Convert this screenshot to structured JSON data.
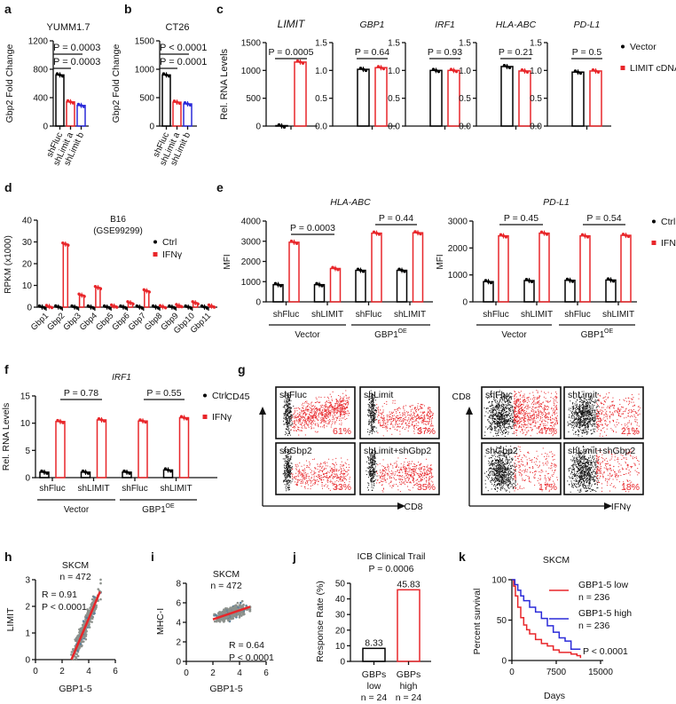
{
  "panels": [
    "a",
    "b",
    "c",
    "d",
    "e",
    "f",
    "g",
    "h",
    "i",
    "j",
    "k"
  ],
  "colors": {
    "ctrl": "#000000",
    "treated": "#e8262a",
    "blue": "#2b2bd9",
    "scatter": "#8c918c"
  },
  "chart_data": [
    {
      "panel": "a",
      "type": "bar",
      "title": "YUMM1.7",
      "ylabel": "Gbp2 Fold Change",
      "ylim": [
        0,
        1200
      ],
      "yticks": [
        "0",
        "400",
        "800",
        "1200"
      ],
      "categories": [
        "shFluc",
        "shLimit a",
        "shLimit b"
      ],
      "values": [
        720,
        340,
        290
      ],
      "pvalues": [
        "P = 0.0003",
        "P = 0.0003"
      ]
    },
    {
      "panel": "b",
      "type": "bar",
      "title": "CT26",
      "ylabel": "Gbp2 Fold Change",
      "ylim": [
        0,
        1500
      ],
      "yticks": [
        "0",
        "500",
        "1000",
        "1500"
      ],
      "categories": [
        "shFluc",
        "shLimit a",
        "shLimit b"
      ],
      "values": [
        900,
        420,
        390
      ],
      "pvalues": [
        "P < 0.0001",
        "P = 0.0001"
      ]
    },
    {
      "panel": "c",
      "type": "bar",
      "ylabel": "Rel. RNA Levels",
      "legend": [
        "Vector",
        "LIMIT cDNA"
      ],
      "subplots": [
        {
          "title": "LIMIT",
          "ylim": [
            0,
            1500
          ],
          "yticks": [
            "0",
            "500",
            "1000",
            "1500"
          ],
          "values": [
            1,
            1150
          ],
          "pvalue": "P = 0.0005"
        },
        {
          "title": "GBP1",
          "ylim": [
            0,
            1.5
          ],
          "yticks": [
            "0.0",
            "0.5",
            "1.0",
            "1.5"
          ],
          "values": [
            1.02,
            1.05
          ],
          "pvalue": "P = 0.64"
        },
        {
          "title": "IRF1",
          "ylim": [
            0,
            1.5
          ],
          "yticks": [
            "0.0",
            "0.5",
            "1.0",
            "1.5"
          ],
          "values": [
            1.0,
            1.0
          ],
          "pvalue": "P = 0.93"
        },
        {
          "title": "HLA-ABC",
          "ylim": [
            0,
            1.5
          ],
          "yticks": [
            "0.0",
            "0.5",
            "1.0",
            "1.5"
          ],
          "values": [
            1.07,
            0.99
          ],
          "pvalue": "P = 0.21"
        },
        {
          "title": "PD-L1",
          "ylim": [
            0,
            1.5
          ],
          "yticks": [
            "0.0",
            "0.5",
            "1.0",
            "1.5"
          ],
          "values": [
            0.97,
            0.99
          ],
          "pvalue": "P = 0.5"
        }
      ]
    },
    {
      "panel": "d",
      "type": "bar",
      "title": "B16",
      "subtitle": "(GSE99299)",
      "ylabel": "RPKM (x1000)",
      "ylim": [
        0,
        40
      ],
      "yticks": [
        "0",
        "10",
        "20",
        "30",
        "40"
      ],
      "categories": [
        "Gbp1",
        "Gbp2",
        "Gbp3",
        "Gbp4",
        "Gbp5",
        "Gbp6",
        "Gbp7",
        "Gbp8",
        "Gbp9",
        "Gbp10",
        "Gbp11"
      ],
      "series": [
        {
          "name": "Ctrl",
          "values": [
            0.05,
            0.1,
            0.05,
            0.05,
            0.05,
            0.05,
            0.05,
            0.05,
            0.05,
            0.05,
            0.05
          ]
        },
        {
          "name": "IFNγ",
          "values": [
            0.3,
            29,
            5.5,
            9,
            0.5,
            2,
            7.5,
            0.2,
            0.7,
            2,
            0.5
          ]
        }
      ]
    },
    {
      "panel": "e",
      "type": "bar",
      "legend": [
        "Ctrl",
        "IFNγ"
      ],
      "subplots": [
        {
          "title": "HLA-ABC",
          "ylabel": "MFI",
          "ylim": [
            0,
            4000
          ],
          "yticks": [
            "0",
            "1000",
            "2000",
            "3000",
            "4000"
          ],
          "categories": [
            "shFluc",
            "shLIMIT",
            "shFluc",
            "shLIMIT"
          ],
          "groups": [
            {
              "label": "Vector"
            },
            {
              "label": "GBP1",
              "superscript": "OE"
            }
          ],
          "series": [
            {
              "name": "Ctrl",
              "values": [
                850,
                850,
                1560,
                1560
              ]
            },
            {
              "name": "IFNγ",
              "values": [
                2950,
                1650,
                3400,
                3420
              ]
            }
          ],
          "pvalues": [
            "P = 0.0003",
            "P = 0.44"
          ]
        },
        {
          "title": "PD-L1",
          "ylabel": "MFI",
          "ylim": [
            0,
            3000
          ],
          "yticks": [
            "0",
            "1000",
            "2000",
            "3000"
          ],
          "categories": [
            "shFluc",
            "shLIMIT",
            "shFluc",
            "shLIMIT"
          ],
          "groups": [
            {
              "label": "Vector"
            },
            {
              "label": "GBP1",
              "superscript": "OE"
            }
          ],
          "series": [
            {
              "name": "Ctrl",
              "values": [
                750,
                790,
                800,
                810
              ]
            },
            {
              "name": "IFNγ",
              "values": [
                2450,
                2550,
                2450,
                2470
              ]
            }
          ],
          "pvalues": [
            "P = 0.45",
            "P = 0.54"
          ]
        }
      ]
    },
    {
      "panel": "f",
      "type": "bar",
      "title": "IRF1",
      "ylabel": "Rel. RNA Levels",
      "ylim": [
        0,
        15
      ],
      "yticks": [
        "0",
        "5",
        "10",
        "15"
      ],
      "legend": [
        "Ctrl",
        "IFNγ"
      ],
      "categories": [
        "shFluc",
        "shLIMIT",
        "shFluc",
        "shLIMIT"
      ],
      "groups": [
        {
          "label": "Vector"
        },
        {
          "label": "GBP1",
          "superscript": "OE"
        }
      ],
      "series": [
        {
          "name": "Ctrl",
          "values": [
            1,
            1,
            1,
            1.4
          ]
        },
        {
          "name": "IFNγ",
          "values": [
            10.3,
            10.6,
            10.4,
            11
          ]
        }
      ],
      "pvalues": [
        "P = 0.78",
        "P = 0.55"
      ]
    },
    {
      "panel": "h",
      "type": "scatter",
      "title": "SKCM",
      "subtitle": "n = 472",
      "xlabel": "GBP1-5",
      "ylabel": "LIMIT",
      "xlim": [
        0,
        6
      ],
      "ylim": [
        0,
        3
      ],
      "xticks": [
        "0",
        "2",
        "4",
        "6"
      ],
      "yticks": [
        "0",
        "1",
        "2",
        "3"
      ],
      "stats": [
        "R = 0.91",
        "P < 0.0001"
      ],
      "fit": {
        "x": [
          2.7,
          4.85
        ],
        "y": [
          0,
          2.55
        ]
      },
      "x_range": [
        2.5,
        4.9
      ]
    },
    {
      "panel": "i",
      "type": "scatter",
      "title": "SKCM",
      "subtitle": "n = 472",
      "xlabel": "GBP1-5",
      "ylabel": "MHC-I",
      "xlim": [
        0,
        6
      ],
      "ylim": [
        0,
        8
      ],
      "xticks": [
        "0",
        "2",
        "4",
        "6"
      ],
      "yticks": [
        "0",
        "2",
        "4",
        "6",
        "8"
      ],
      "stats": [
        "R = 0.64",
        "P < 0.0001"
      ],
      "fit": {
        "x": [
          2.0,
          4.8
        ],
        "y": [
          4.3,
          5.6
        ]
      },
      "x_range": [
        2.1,
        4.8
      ]
    },
    {
      "panel": "j",
      "type": "bar",
      "title": "ICB Clinical Trail",
      "subtitle": "P = 0.0006",
      "ylabel": "Response Rate (%)",
      "ylim": [
        0,
        50
      ],
      "yticks": [
        "0",
        "10",
        "20",
        "30",
        "40",
        "50"
      ],
      "categories": [
        {
          "line1": "GBPs",
          "line2": "low",
          "n": "n = 24"
        },
        {
          "line1": "GBPs",
          "line2": "high",
          "n": "n = 24"
        }
      ],
      "values": [
        8.33,
        45.83
      ],
      "value_labels": [
        "8.33",
        "45.83"
      ]
    },
    {
      "panel": "k",
      "type": "line",
      "title": "SKCM",
      "xlabel": "Days",
      "ylabel": "Percent survival",
      "xlim": [
        0,
        15000
      ],
      "ylim": [
        0,
        100
      ],
      "xticks": [
        "0",
        "7500",
        "15000"
      ],
      "yticks": [
        "0",
        "50",
        "100"
      ],
      "pvalue": "P < 0.0001",
      "series": [
        {
          "name": "GBP1-5 low",
          "n": "n = 236",
          "points": [
            [
              0,
              100
            ],
            [
              300,
              92
            ],
            [
              600,
              80
            ],
            [
              1000,
              66
            ],
            [
              1500,
              53
            ],
            [
              2000,
              44
            ],
            [
              2500,
              38
            ],
            [
              3000,
              33
            ],
            [
              4000,
              26
            ],
            [
              5000,
              21
            ],
            [
              6000,
              18
            ],
            [
              7000,
              13
            ],
            [
              8000,
              10
            ],
            [
              10000,
              8
            ],
            [
              11000,
              6
            ],
            [
              11600,
              3
            ]
          ]
        },
        {
          "name": "GBP1-5 high",
          "n": "n = 236",
          "points": [
            [
              0,
              100
            ],
            [
              500,
              94
            ],
            [
              1000,
              87
            ],
            [
              1500,
              80
            ],
            [
              2000,
              74
            ],
            [
              3000,
              66
            ],
            [
              4000,
              60
            ],
            [
              5000,
              52
            ],
            [
              6000,
              43
            ],
            [
              7000,
              35
            ],
            [
              8000,
              28
            ],
            [
              9000,
              24
            ],
            [
              10000,
              14
            ],
            [
              11600,
              14
            ]
          ]
        }
      ]
    }
  ],
  "flow_cytometry": {
    "panel": "g",
    "left": {
      "yaxis": "CD45",
      "xaxis": "CD8",
      "samples": [
        {
          "label": "shFluc",
          "percent": "61%"
        },
        {
          "label": "shLimit",
          "percent": "37%"
        },
        {
          "label": "shGbp2",
          "percent": "33%"
        },
        {
          "label": "shLimit+shGbp2",
          "percent": "35%"
        }
      ]
    },
    "right": {
      "yaxis": "CD8",
      "xaxis": "IFNγ",
      "samples": [
        {
          "label": "shFluc",
          "percent": "47%"
        },
        {
          "label": "shLimit",
          "percent": "21%"
        },
        {
          "label": "shGbp2",
          "percent": "17%"
        },
        {
          "label": "shLimit+shGbp2",
          "percent": "18%"
        }
      ]
    }
  }
}
